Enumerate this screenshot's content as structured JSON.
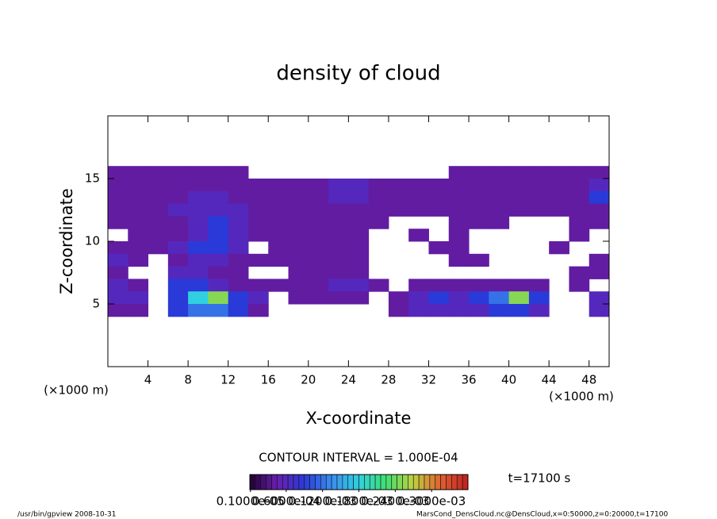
{
  "chart_data": {
    "type": "heatmap",
    "title": "density of cloud",
    "x_label": "X-coordinate",
    "y_label": "Z-coordinate",
    "x_unit_left": "(×1000 m)",
    "x_unit_right": "(×1000 m)",
    "xlim": [
      0,
      50
    ],
    "ylim": [
      0,
      20
    ],
    "xticks": [
      4,
      8,
      12,
      16,
      20,
      24,
      28,
      32,
      36,
      40,
      44,
      48
    ],
    "yticks": [
      5,
      10,
      15
    ],
    "x": [
      1,
      3,
      5,
      7,
      9,
      11,
      13,
      15,
      17,
      19,
      21,
      23,
      25,
      27,
      29,
      31,
      33,
      35,
      37,
      39,
      41,
      43,
      45,
      47,
      49
    ],
    "y": [
      15.5,
      14.5,
      13.5,
      12.5,
      11.5,
      10.5,
      9.5,
      8.5,
      7.5,
      6.5,
      5.5,
      4.5
    ],
    "values": [
      [
        4e-05,
        4e-05,
        4e-05,
        4e-05,
        4e-05,
        4e-05,
        4e-05,
        null,
        null,
        null,
        null,
        null,
        null,
        null,
        null,
        null,
        null,
        4e-05,
        4e-05,
        4e-05,
        4e-05,
        4e-05,
        4e-05,
        4e-05,
        4e-05
      ],
      [
        4e-05,
        4e-05,
        4e-05,
        4e-05,
        4e-05,
        4e-05,
        4e-05,
        4e-05,
        4e-05,
        4e-05,
        4e-05,
        6e-05,
        6e-05,
        4e-05,
        4e-05,
        4e-05,
        4e-05,
        4e-05,
        4e-05,
        4e-05,
        4e-05,
        4e-05,
        4e-05,
        4e-05,
        6e-05
      ],
      [
        4e-05,
        4e-05,
        4e-05,
        4e-05,
        6e-05,
        6e-05,
        4e-05,
        4e-05,
        4e-05,
        4e-05,
        4e-05,
        6e-05,
        6e-05,
        4e-05,
        4e-05,
        4e-05,
        4e-05,
        4e-05,
        4e-05,
        4e-05,
        4e-05,
        4e-05,
        4e-05,
        4e-05,
        9e-05
      ],
      [
        4e-05,
        4e-05,
        4e-05,
        6e-05,
        6e-05,
        6e-05,
        6e-05,
        4e-05,
        4e-05,
        4e-05,
        4e-05,
        4e-05,
        4e-05,
        4e-05,
        4e-05,
        4e-05,
        4e-05,
        4e-05,
        4e-05,
        4e-05,
        4e-05,
        4e-05,
        4e-05,
        4e-05,
        4e-05
      ],
      [
        4e-05,
        4e-05,
        4e-05,
        4e-05,
        6e-05,
        9e-05,
        6e-05,
        4e-05,
        4e-05,
        4e-05,
        4e-05,
        4e-05,
        4e-05,
        4e-05,
        null,
        null,
        null,
        4e-05,
        4e-05,
        4e-05,
        null,
        null,
        null,
        4e-05,
        4e-05
      ],
      [
        null,
        4e-05,
        4e-05,
        4e-05,
        6e-05,
        9e-05,
        6e-05,
        4e-05,
        4e-05,
        4e-05,
        4e-05,
        4e-05,
        4e-05,
        null,
        null,
        4e-05,
        null,
        4e-05,
        null,
        null,
        null,
        null,
        null,
        4e-05,
        null
      ],
      [
        4e-05,
        4e-05,
        4e-05,
        6e-05,
        9e-05,
        9e-05,
        6e-05,
        null,
        4e-05,
        4e-05,
        4e-05,
        4e-05,
        4e-05,
        null,
        null,
        null,
        4e-05,
        4e-05,
        null,
        null,
        null,
        null,
        4e-05,
        null,
        null
      ],
      [
        6e-05,
        4e-05,
        null,
        4e-05,
        6e-05,
        6e-05,
        4e-05,
        4e-05,
        4e-05,
        4e-05,
        4e-05,
        4e-05,
        4e-05,
        null,
        null,
        null,
        null,
        4e-05,
        4e-05,
        null,
        null,
        null,
        null,
        null,
        4e-05
      ],
      [
        4e-05,
        null,
        null,
        6e-05,
        6e-05,
        4e-05,
        4e-05,
        null,
        null,
        4e-05,
        4e-05,
        4e-05,
        4e-05,
        null,
        null,
        null,
        null,
        null,
        null,
        null,
        null,
        null,
        null,
        4e-05,
        4e-05
      ],
      [
        6e-05,
        4e-05,
        null,
        9e-05,
        9e-05,
        6e-05,
        4e-05,
        4e-05,
        4e-05,
        4e-05,
        4e-05,
        6e-05,
        6e-05,
        4e-05,
        null,
        4e-05,
        4e-05,
        4e-05,
        4e-05,
        4e-05,
        4e-05,
        4e-05,
        null,
        4e-05,
        null
      ],
      [
        6e-05,
        6e-05,
        null,
        9e-05,
        0.00018,
        0.00025,
        9e-05,
        6e-05,
        null,
        4e-05,
        4e-05,
        4e-05,
        4e-05,
        null,
        4e-05,
        6e-05,
        9e-05,
        6e-05,
        9e-05,
        0.00012,
        0.00025,
        9e-05,
        null,
        null,
        6e-05
      ],
      [
        4e-05,
        4e-05,
        null,
        9e-05,
        0.00012,
        0.00012,
        9e-05,
        4e-05,
        null,
        null,
        null,
        null,
        null,
        null,
        4e-05,
        6e-05,
        6e-05,
        6e-05,
        6e-05,
        9e-05,
        9e-05,
        6e-05,
        null,
        null,
        6e-05
      ]
    ],
    "colormap": [
      "#200030",
      "#6a1fb0",
      "#2a3ad8",
      "#3a8ef0",
      "#30d0e0",
      "#40e070",
      "#c0d040",
      "#e06030",
      "#c02020"
    ],
    "clim": [
      0,
      0.00036
    ],
    "contour_interval": "CONTOUR INTERVAL = 1.000E-04",
    "colorbar_ticks": [
      {
        "value": 1e-06,
        "label": "0.1000e-05"
      },
      {
        "value": 6e-05,
        "label": "0.6000e-04"
      },
      {
        "value": 0.00012,
        "label": "0.1200e-03"
      },
      {
        "value": 0.00018,
        "label": "0.1800e-03"
      },
      {
        "value": 0.00024,
        "label": "0.2400e-03"
      },
      {
        "value": 0.0003,
        "label": "0.3000e-03"
      }
    ],
    "time_label": "t=17100 s",
    "footer_left": "/usr/bin/gpview   2008-10-31",
    "footer_right": "MarsCond_DensCloud.nc@DensCloud,x=0:50000,z=0:20000,t=17100"
  }
}
